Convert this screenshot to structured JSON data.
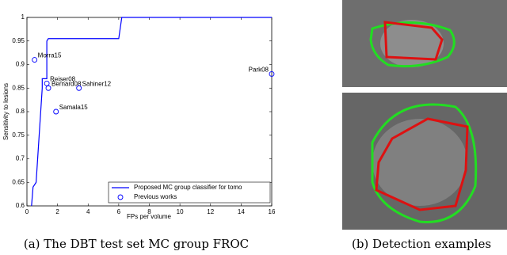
{
  "chart_data": {
    "type": "line",
    "xlabel": "FPs per volume",
    "ylabel": "Sensitivity to lesions",
    "xlim": [
      0,
      16
    ],
    "xticks": [
      0,
      2,
      4,
      6,
      8,
      10,
      12,
      14,
      16
    ],
    "ylim": [
      0.6,
      1
    ],
    "yticks": [
      0.6,
      0.65,
      0.7,
      0.75,
      0.8,
      0.85,
      0.9,
      0.95,
      1
    ],
    "legend": "lower right",
    "series": [
      {
        "name": "Proposed MC group classifier for tomo",
        "type": "line",
        "color": "#0000ff",
        "x": [
          0.3,
          0.4,
          0.6,
          0.7,
          0.8,
          0.9,
          1.0,
          1.0,
          1.3,
          1.3,
          1.4,
          6.0,
          6.2,
          16
        ],
        "values": [
          0.6,
          0.64,
          0.65,
          0.7,
          0.75,
          0.8,
          0.85,
          0.87,
          0.87,
          0.95,
          0.955,
          0.955,
          1,
          1
        ]
      },
      {
        "name": "Previous works",
        "type": "scatter",
        "color": "#0000ff",
        "x": [
          0.5,
          1.3,
          1.4,
          3.4,
          1.9,
          16
        ],
        "values": [
          0.91,
          0.86,
          0.85,
          0.85,
          0.8,
          0.88
        ],
        "labels": [
          "Morra15",
          "Reiser08",
          "Bernard08",
          "Sahiner12",
          "Samala15",
          "Park08"
        ]
      }
    ]
  },
  "figure": {
    "captions": [
      "(a) The DBT test set MC group FROC",
      "(b) Detection examples"
    ]
  }
}
